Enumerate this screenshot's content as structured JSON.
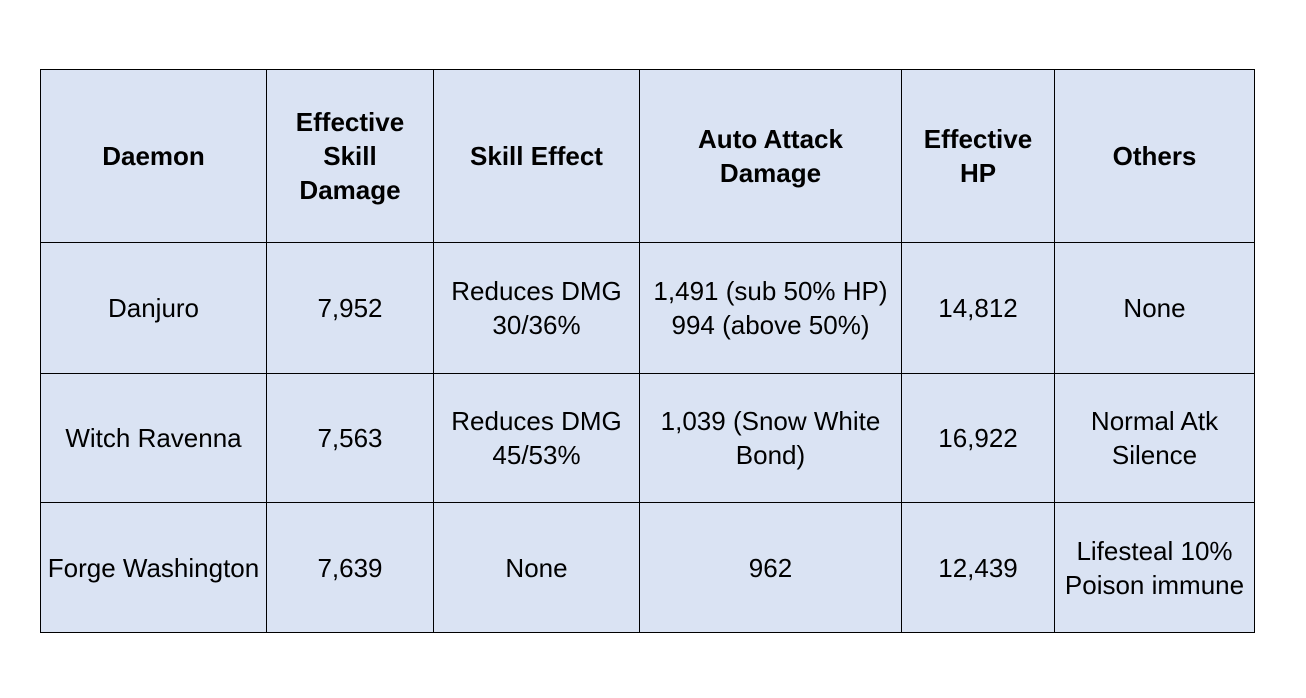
{
  "table": {
    "header": [
      "Daemon",
      "Effective Skill Damage",
      "Skill Effect",
      "Auto Attack Damage",
      "Effective HP",
      "Others"
    ],
    "rows": [
      [
        "Danjuro",
        "7,952",
        "Reduces DMG 30/36%",
        "1,491 (sub 50% HP)\n994 (above 50%)",
        "14,812",
        "None"
      ],
      [
        "Witch Ravenna",
        "7,563",
        "Reduces DMG 45/53%",
        "1,039 (Snow White Bond)",
        "16,922",
        "Normal Atk Silence"
      ],
      [
        "Forge Washington",
        "7,639",
        "None",
        "962",
        "12,439",
        "Lifesteal 10% Poison immune"
      ]
    ]
  }
}
